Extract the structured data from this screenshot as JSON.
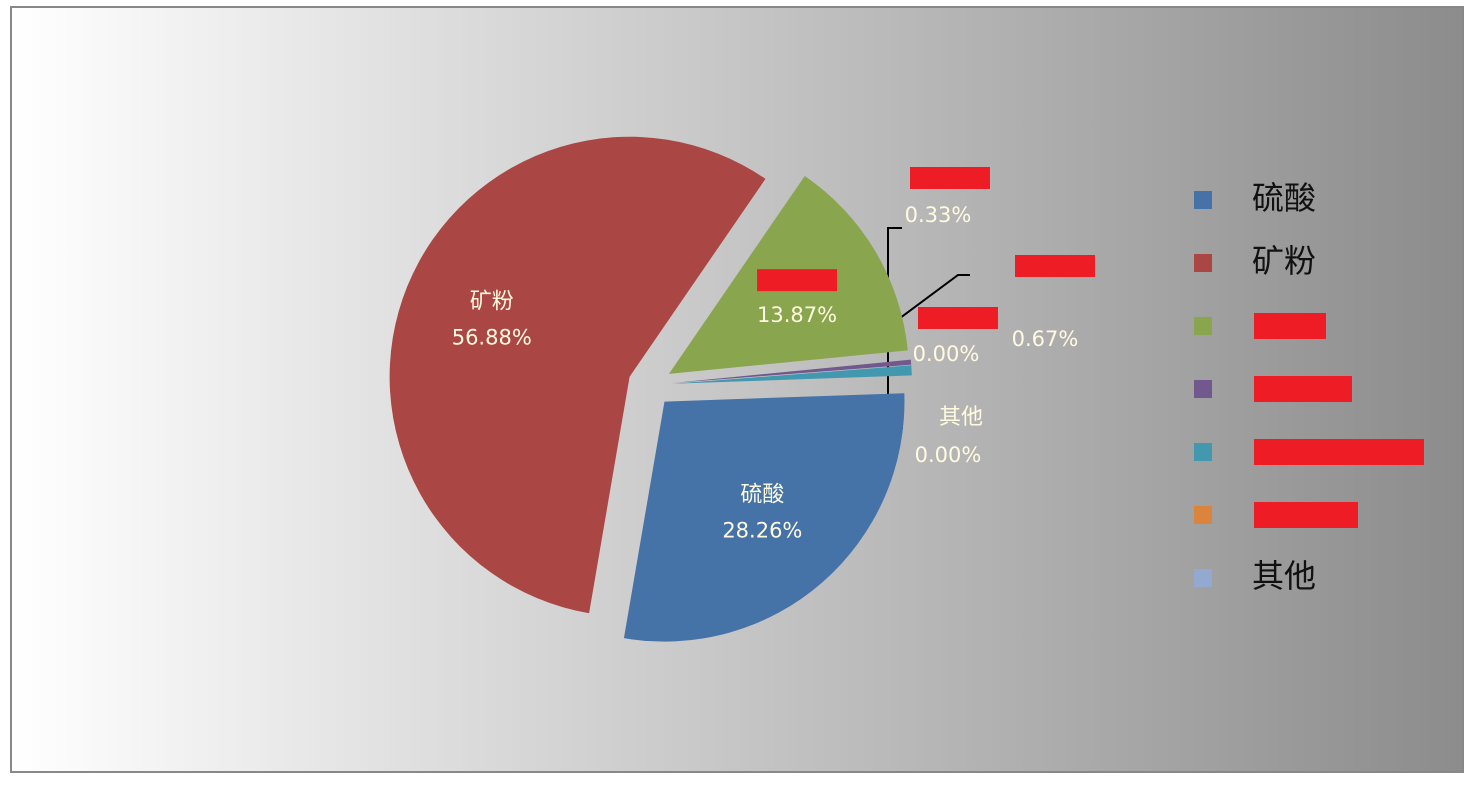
{
  "chart_data": {
    "type": "pie",
    "categories": [
      "硫酸",
      "矿粉",
      null,
      null,
      null,
      null,
      "其他"
    ],
    "values": [
      28.26,
      56.88,
      13.87,
      0.33,
      0.67,
      0.0,
      0.0
    ],
    "value_labels": [
      "28.26%",
      "56.88%",
      "13.87%",
      "0.33%",
      "0.67%",
      "0.00%",
      "0.00%"
    ],
    "colors": [
      "#4572a7",
      "#aa4643",
      "#89a54e",
      "#71588f",
      "#4198af",
      "#db843d",
      "#93a9cf"
    ],
    "legend": "right"
  }
}
